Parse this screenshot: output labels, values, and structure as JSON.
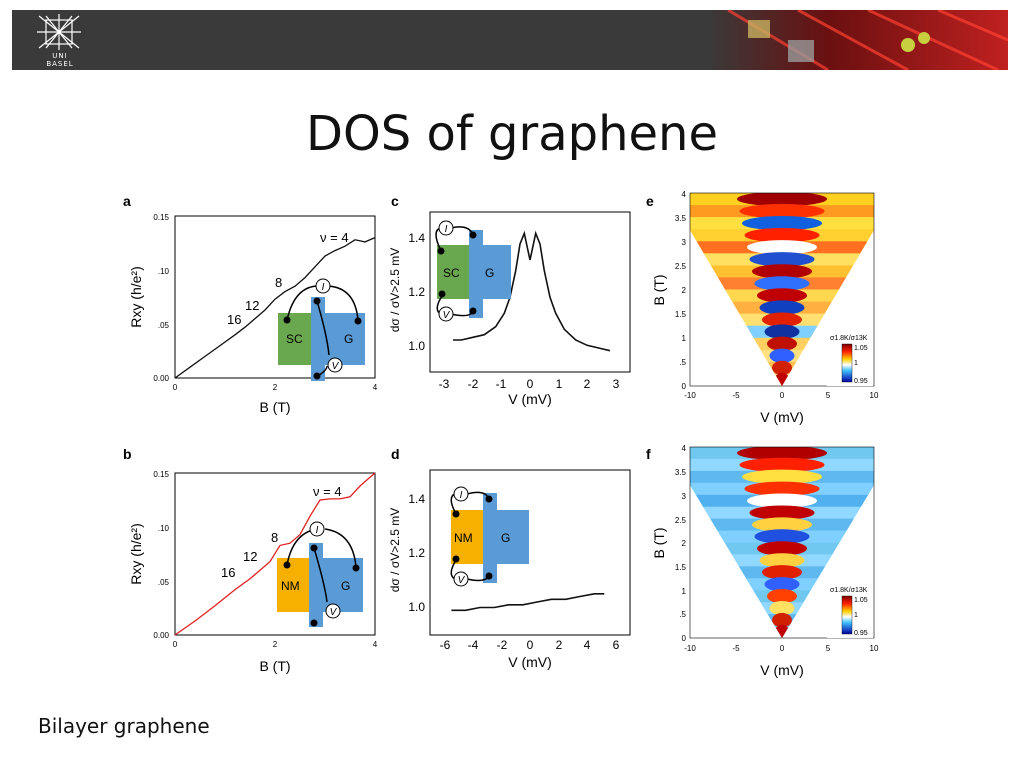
{
  "header": {
    "logo_text": "UNI\nBASEL"
  },
  "slide": {
    "title": "DOS of graphene",
    "footnote": "Bilayer graphene"
  },
  "chart_data": [
    {
      "id": "a",
      "type": "line",
      "panel_label": "a",
      "xlabel": "B (T)",
      "ylabel": "Rxy (h/e²)",
      "xlim": [
        0,
        4
      ],
      "ylim": [
        0,
        0.15
      ],
      "x_ticks": [
        "0",
        "2",
        "4"
      ],
      "y_ticks": [
        "0.00",
        ".05",
        ".10",
        "0.15"
      ],
      "annotations": [
        "ν = 4",
        "8",
        "12",
        "16"
      ],
      "inset_labels": [
        "SC",
        "G",
        "I",
        "V"
      ],
      "series": [
        {
          "color": "#111111",
          "x": [
            0,
            0.3,
            0.6,
            0.9,
            1.2,
            1.4,
            1.6,
            1.8,
            2.0,
            2.2,
            2.4,
            2.6,
            2.8,
            3.0,
            3.2,
            3.4,
            3.6,
            3.8,
            4.0
          ],
          "y": [
            0,
            0.01,
            0.02,
            0.03,
            0.04,
            0.047,
            0.055,
            0.063,
            0.073,
            0.08,
            0.085,
            0.093,
            0.103,
            0.113,
            0.118,
            0.122,
            0.128,
            0.126,
            0.13
          ]
        }
      ]
    },
    {
      "id": "b",
      "type": "line",
      "panel_label": "b",
      "xlabel": "B (T)",
      "ylabel": "Rxy (h/e²)",
      "xlim": [
        0,
        4
      ],
      "ylim": [
        0,
        0.15
      ],
      "x_ticks": [
        "0",
        "2",
        "4"
      ],
      "y_ticks": [
        "0.00",
        ".05",
        ".10",
        "0.15"
      ],
      "annotations": [
        "ν = 4",
        "8",
        "12",
        "16"
      ],
      "inset_labels": [
        "NM",
        "G",
        "I",
        "V"
      ],
      "series": [
        {
          "color": "#e02020",
          "x": [
            0,
            0.4,
            0.8,
            1.2,
            1.5,
            1.7,
            1.9,
            2.1,
            2.3,
            2.5,
            2.7,
            2.9,
            3.1,
            3.3,
            3.5,
            3.7,
            3.9,
            4.0
          ],
          "y": [
            0,
            0.013,
            0.027,
            0.042,
            0.052,
            0.06,
            0.068,
            0.083,
            0.085,
            0.093,
            0.11,
            0.125,
            0.126,
            0.126,
            0.128,
            0.138,
            0.146,
            0.15
          ]
        }
      ]
    },
    {
      "id": "c",
      "type": "line",
      "panel_label": "c",
      "xlabel": "V (mV)",
      "ylabel": "dσ / σV>2.5 mV",
      "xlim": [
        -3.5,
        3.5
      ],
      "ylim": [
        0.9,
        1.5
      ],
      "x_ticks": [
        "-3",
        "-2",
        "-1",
        "0",
        "1",
        "2",
        "3"
      ],
      "y_ticks": [
        "1.0",
        "1.2",
        "1.4"
      ],
      "inset_labels": [
        "SC",
        "G",
        "I",
        "V"
      ],
      "series": [
        {
          "color": "#111111",
          "x": [
            -2.7,
            -2.4,
            -2.0,
            -1.6,
            -1.2,
            -0.9,
            -0.7,
            -0.5,
            -0.35,
            -0.2,
            0,
            0.2,
            0.35,
            0.5,
            0.7,
            0.9,
            1.2,
            1.6,
            2.0,
            2.4,
            2.8
          ],
          "y": [
            1.02,
            1.02,
            1.03,
            1.04,
            1.07,
            1.12,
            1.18,
            1.28,
            1.38,
            1.42,
            1.32,
            1.42,
            1.38,
            1.28,
            1.18,
            1.12,
            1.06,
            1.02,
            1.0,
            0.99,
            0.98
          ]
        }
      ]
    },
    {
      "id": "d",
      "type": "line",
      "panel_label": "d",
      "xlabel": "V (mV)",
      "ylabel": "dσ / σV>2.5 mV",
      "xlim": [
        -7,
        7
      ],
      "ylim": [
        0.9,
        1.5
      ],
      "x_ticks": [
        "-6",
        "-4",
        "-2",
        "0",
        "2",
        "4",
        "6"
      ],
      "y_ticks": [
        "1.0",
        "1.2",
        "1.4"
      ],
      "inset_labels": [
        "NM",
        "G",
        "I",
        "V"
      ],
      "series": [
        {
          "color": "#111111",
          "x": [
            -5.5,
            -4.5,
            -3.5,
            -2.5,
            -1.5,
            -0.5,
            0.5,
            1.5,
            2.5,
            3.5,
            4.5,
            5.2
          ],
          "y": [
            0.99,
            0.99,
            1.0,
            1.0,
            1.01,
            1.01,
            1.02,
            1.03,
            1.03,
            1.04,
            1.05,
            1.05
          ]
        }
      ]
    },
    {
      "id": "e",
      "type": "heatmap",
      "panel_label": "e",
      "xlabel": "V (mV)",
      "ylabel": "B (T)",
      "xlim": [
        -10,
        10
      ],
      "ylim": [
        0,
        4
      ],
      "x_ticks": [
        "-10",
        "-5",
        "0",
        "5",
        "10"
      ],
      "y_ticks": [
        "0",
        ".5",
        "1",
        "1.5",
        "2",
        "2.5",
        "3",
        "3.5",
        "4"
      ],
      "colorbar": {
        "label": "σ1.8K/σ13K",
        "ticks": [
          "1.05",
          "1",
          "0.95"
        ]
      }
    },
    {
      "id": "f",
      "type": "heatmap",
      "panel_label": "f",
      "xlabel": "V (mV)",
      "ylabel": "B (T)",
      "xlim": [
        -10,
        10
      ],
      "ylim": [
        0,
        4
      ],
      "x_ticks": [
        "-10",
        "-5",
        "0",
        "5",
        "10"
      ],
      "y_ticks": [
        "0",
        ".5",
        "1",
        "1.5",
        "2",
        "2.5",
        "3",
        "3.5",
        "4"
      ],
      "colorbar": {
        "label": "σ1.8K/σ13K",
        "ticks": [
          "1.05",
          "1",
          "0.95"
        ]
      }
    }
  ]
}
